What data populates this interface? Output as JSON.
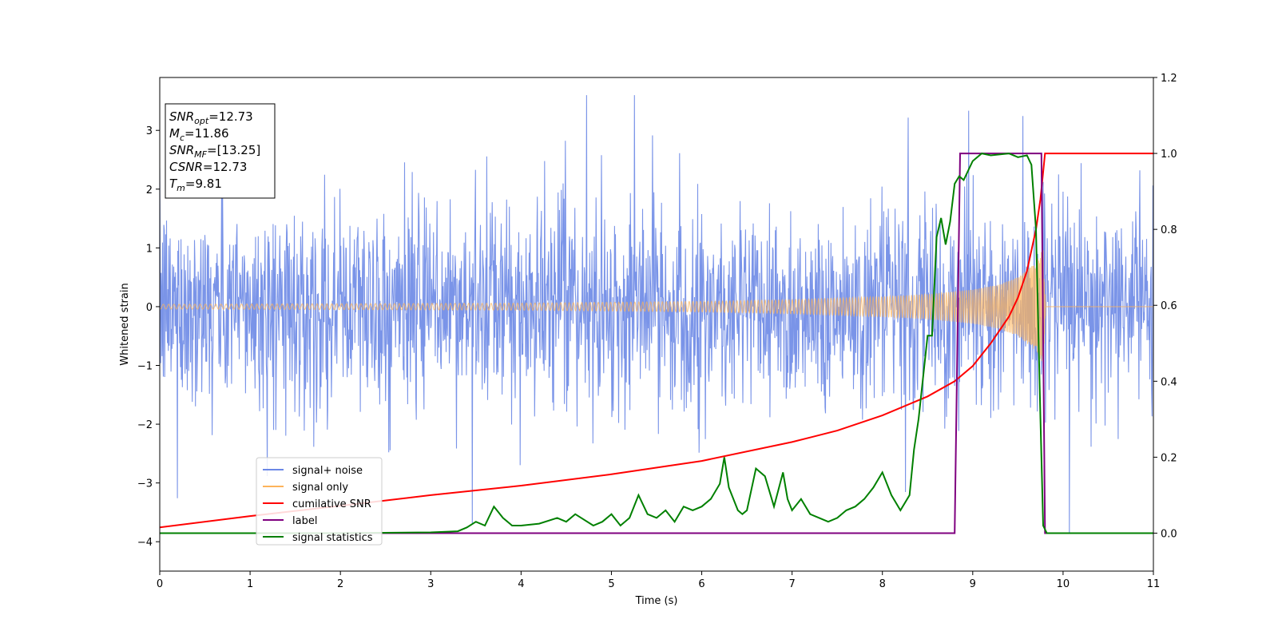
{
  "chart_data": {
    "type": "line",
    "title": "",
    "xlabel": "Time (s)",
    "ylabel": "Whitened strain",
    "xlim": [
      0,
      11
    ],
    "ylim": [
      -4.5,
      3.9
    ],
    "y2lim": [
      -0.1,
      1.2
    ],
    "grid": false,
    "legend_position": "lower-left",
    "x_ticks": [
      0,
      1,
      2,
      3,
      4,
      5,
      6,
      7,
      8,
      9,
      10,
      11
    ],
    "x_tick_labels": [
      "0",
      "1",
      "2",
      "3",
      "4",
      "5",
      "6",
      "7",
      "8",
      "9",
      "10",
      "11"
    ],
    "y_ticks": [
      3,
      2,
      1,
      0,
      -1,
      -2,
      -3,
      -4
    ],
    "y_tick_labels": [
      "3",
      "2",
      "1",
      "0",
      "−1",
      "−2",
      "−3",
      "−4"
    ],
    "y2_ticks": [
      1.2,
      1.0,
      0.8,
      0.6,
      0.4,
      0.2,
      0.0
    ],
    "y2_tick_labels": [
      "1.2",
      "1.0",
      "0.8",
      "0.6",
      "0.4",
      "0.2",
      "0.0"
    ],
    "info_box": [
      {
        "base": "SNR",
        "sub": "opt",
        "rest": "=12.73"
      },
      {
        "base": "M",
        "sub": "c",
        "rest": "=11.86"
      },
      {
        "base": "SNR",
        "sub": "MF",
        "rest": "=[13.25]"
      },
      {
        "base": "CSNR",
        "sub": "",
        "rest": "=12.73"
      },
      {
        "base": "T",
        "sub": "m",
        "rest": "=9.81"
      }
    ],
    "series": [
      {
        "name": "signal+ noise",
        "color": "#6b88e6",
        "axis": "left",
        "style": "whitened noise, sample rate ~200 Hz, envelope about ±1.5 with peaks to ±3.5"
      },
      {
        "name": "signal only",
        "color": "#fdb35a",
        "axis": "left",
        "style": "chirp waveform",
        "amplitude_t": [
          0,
          4,
          6,
          7,
          8,
          8.5,
          9,
          9.3,
          9.5,
          9.7,
          9.78,
          9.81,
          11
        ],
        "amplitude_v": [
          0.04,
          0.06,
          0.09,
          0.12,
          0.17,
          0.21,
          0.29,
          0.38,
          0.5,
          0.75,
          1.0,
          0,
          0
        ]
      },
      {
        "name": "cumilative SNR",
        "color": "#ff0000",
        "axis": "right",
        "x": [
          0,
          1,
          2,
          3,
          4,
          5,
          6,
          7,
          7.5,
          8,
          8.5,
          8.8,
          9,
          9.2,
          9.4,
          9.5,
          9.6,
          9.7,
          9.75,
          9.8,
          11
        ],
        "y": [
          0.015,
          0.045,
          0.072,
          0.1,
          0.125,
          0.155,
          0.19,
          0.24,
          0.27,
          0.31,
          0.36,
          0.4,
          0.44,
          0.5,
          0.57,
          0.62,
          0.69,
          0.8,
          0.88,
          1.0,
          1.0
        ]
      },
      {
        "name": "label",
        "color": "#7f007f",
        "axis": "right",
        "x": [
          0,
          8.8,
          8.86,
          9.76,
          9.8,
          11
        ],
        "y": [
          0,
          0,
          1.0,
          1.0,
          0,
          0
        ]
      },
      {
        "name": "signal statistics",
        "color": "#008000",
        "axis": "right",
        "x": [
          0,
          2,
          3,
          3.3,
          3.4,
          3.5,
          3.6,
          3.7,
          3.8,
          3.9,
          4.0,
          4.2,
          4.4,
          4.5,
          4.6,
          4.8,
          4.9,
          5.0,
          5.1,
          5.2,
          5.3,
          5.4,
          5.5,
          5.6,
          5.7,
          5.8,
          5.9,
          6.0,
          6.1,
          6.2,
          6.25,
          6.3,
          6.4,
          6.45,
          6.5,
          6.6,
          6.7,
          6.8,
          6.9,
          6.95,
          7.0,
          7.1,
          7.2,
          7.3,
          7.4,
          7.5,
          7.6,
          7.7,
          7.8,
          7.9,
          8.0,
          8.1,
          8.2,
          8.3,
          8.35,
          8.4,
          8.5,
          8.55,
          8.6,
          8.65,
          8.7,
          8.75,
          8.8,
          8.85,
          8.9,
          9.0,
          9.1,
          9.2,
          9.4,
          9.5,
          9.6,
          9.65,
          9.7,
          9.75,
          9.78,
          9.82,
          9.9,
          11
        ],
        "y": [
          0,
          0,
          0.002,
          0.005,
          0.015,
          0.03,
          0.02,
          0.07,
          0.04,
          0.02,
          0.02,
          0.025,
          0.04,
          0.03,
          0.05,
          0.02,
          0.03,
          0.05,
          0.02,
          0.04,
          0.1,
          0.05,
          0.04,
          0.06,
          0.03,
          0.07,
          0.06,
          0.07,
          0.09,
          0.13,
          0.2,
          0.12,
          0.06,
          0.05,
          0.06,
          0.17,
          0.15,
          0.07,
          0.16,
          0.09,
          0.06,
          0.09,
          0.05,
          0.04,
          0.03,
          0.04,
          0.06,
          0.07,
          0.09,
          0.12,
          0.16,
          0.1,
          0.06,
          0.1,
          0.22,
          0.3,
          0.52,
          0.52,
          0.78,
          0.83,
          0.76,
          0.82,
          0.92,
          0.94,
          0.93,
          0.98,
          1.0,
          0.995,
          1.0,
          0.99,
          0.995,
          0.97,
          0.8,
          0.3,
          0.02,
          0.0,
          0.0,
          0.0
        ]
      }
    ]
  }
}
